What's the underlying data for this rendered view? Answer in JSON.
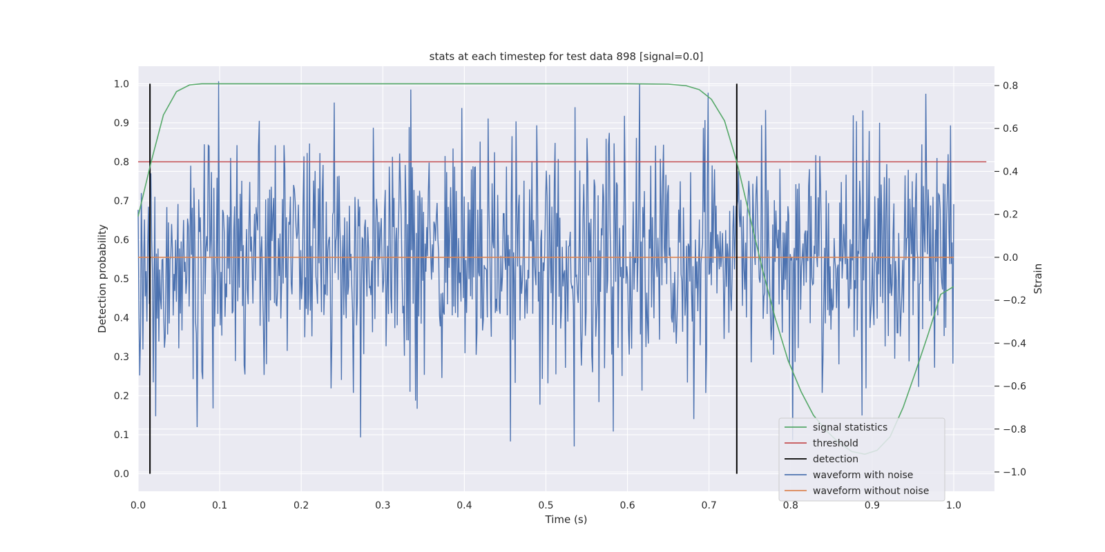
{
  "chart_data": {
    "type": "line",
    "title": "stats at each timestep for test data 898 [signal=0.0]",
    "xlabel": "Time (s)",
    "ylabel_left": "Detection probability",
    "ylabel_right": "Strain",
    "xlim": [
      0.0,
      1.05
    ],
    "ylim_left": [
      -0.045,
      1.045
    ],
    "ylim_right": [
      -1.09,
      0.89
    ],
    "x_ticks": [
      0.0,
      0.1,
      0.2,
      0.3,
      0.4,
      0.5,
      0.6,
      0.7,
      0.8,
      0.9,
      1.0
    ],
    "x_tick_labels": [
      "0.0",
      "0.1",
      "0.2",
      "0.3",
      "0.4",
      "0.5",
      "0.6",
      "0.7",
      "0.8",
      "0.9",
      "1.0"
    ],
    "y_left_ticks": [
      0.0,
      0.1,
      0.2,
      0.3,
      0.4,
      0.5,
      0.6,
      0.7,
      0.8,
      0.9,
      1.0
    ],
    "y_left_tick_labels": [
      "0.0",
      "0.1",
      "0.2",
      "0.3",
      "0.4",
      "0.5",
      "0.6",
      "0.7",
      "0.8",
      "0.9",
      "1.0"
    ],
    "y_right_ticks": [
      -1.0,
      -0.8,
      -0.6,
      -0.4,
      -0.2,
      0.0,
      0.2,
      0.4,
      0.6,
      0.8
    ],
    "y_right_tick_labels": [
      "−1.0",
      "−0.8",
      "−0.6",
      "−0.4",
      "−0.2",
      "0.0",
      "0.2",
      "0.4",
      "0.6",
      "0.8"
    ],
    "grid": true,
    "legend_position": "bottom-right",
    "series": [
      {
        "name": "signal statistics",
        "axis": "left",
        "color": "#55a868",
        "x": [
          0.0,
          0.016,
          0.031,
          0.047,
          0.063,
          0.078,
          0.1,
          0.2,
          0.3,
          0.4,
          0.5,
          0.6,
          0.65,
          0.672,
          0.688,
          0.703,
          0.719,
          0.734,
          0.75,
          0.766,
          0.781,
          0.797,
          0.813,
          0.828,
          0.844,
          0.859,
          0.875,
          0.891,
          0.906,
          0.922,
          0.938,
          0.953,
          0.969,
          0.984,
          1.0
        ],
        "y": [
          0.66,
          0.8,
          0.92,
          0.98,
          0.997,
          1.0,
          1.0,
          1.0,
          1.0,
          1.0,
          1.0,
          1.0,
          0.999,
          0.995,
          0.985,
          0.96,
          0.905,
          0.8,
          0.66,
          0.52,
          0.4,
          0.29,
          0.21,
          0.15,
          0.11,
          0.08,
          0.057,
          0.05,
          0.06,
          0.095,
          0.17,
          0.26,
          0.36,
          0.46,
          0.48
        ]
      },
      {
        "name": "threshold",
        "axis": "left",
        "color": "#c44e52",
        "x": [
          0.0,
          1.04
        ],
        "y": [
          0.8,
          0.8
        ]
      },
      {
        "name": "detection",
        "axis": "left",
        "color": "#000000",
        "segments": [
          {
            "x": 0.0145,
            "y": [
              0.0,
              1.0
            ]
          },
          {
            "x": 0.734,
            "y": [
              0.0,
              1.0
            ]
          }
        ]
      },
      {
        "name": "waveform with noise",
        "axis": "right",
        "color": "#4c72b0",
        "sample_count": 1024,
        "x_range": [
          0.0,
          1.0
        ],
        "y_range": [
          -1.0,
          0.82
        ],
        "y_std": 0.28
      },
      {
        "name": "waveform without noise",
        "axis": "right",
        "color": "#dd8452",
        "x": [
          0.0,
          1.0
        ],
        "y": [
          0.0,
          0.0
        ]
      }
    ]
  }
}
